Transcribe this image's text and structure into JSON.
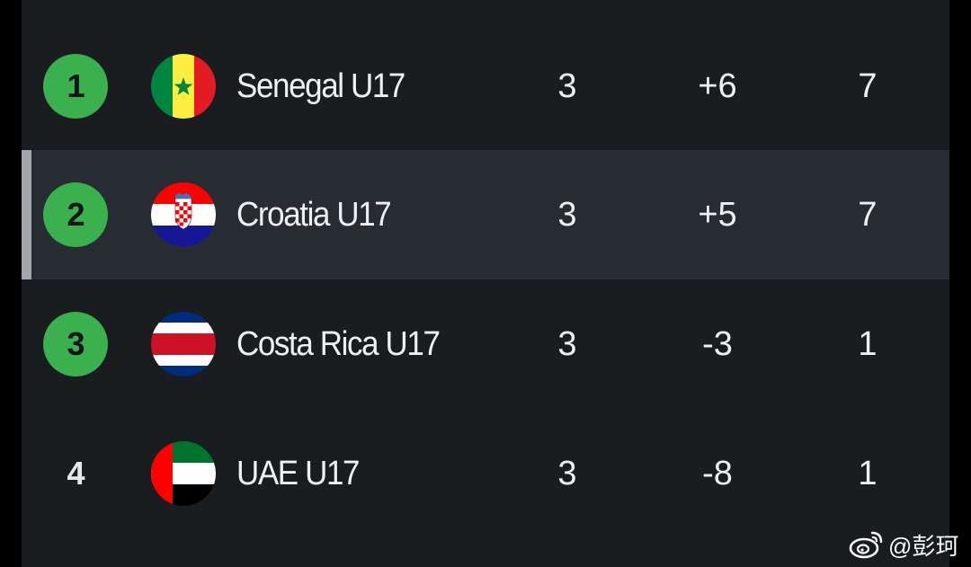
{
  "standings": {
    "rows": [
      {
        "position": "1",
        "team": "Senegal U17",
        "flag": "senegal-flag-icon",
        "played": "3",
        "goal_difference": "+6",
        "points": "7",
        "badge": "green"
      },
      {
        "position": "2",
        "team": "Croatia U17",
        "flag": "croatia-flag-icon",
        "played": "3",
        "goal_difference": "+5",
        "points": "7",
        "badge": "green",
        "highlighted": true
      },
      {
        "position": "3",
        "team": "Costa Rica U17",
        "flag": "costa-rica-flag-icon",
        "played": "3",
        "goal_difference": "-3",
        "points": "1",
        "badge": "green"
      },
      {
        "position": "4",
        "team": "UAE U17",
        "flag": "uae-flag-icon",
        "played": "3",
        "goal_difference": "-8",
        "points": "1",
        "badge": "none"
      }
    ]
  },
  "watermark": {
    "text": "@彭珂",
    "icon": "weibo-icon"
  },
  "colors": {
    "qualify_badge": "#3ab04f",
    "highlight_row": "#272c33",
    "panel": "#1a1d20",
    "accent_bar": "#a3a7ad"
  }
}
